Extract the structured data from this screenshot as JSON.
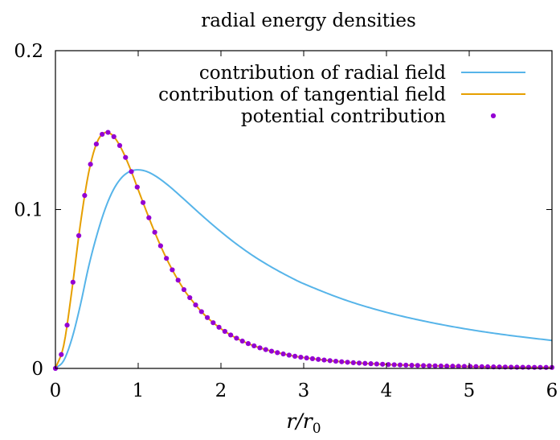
{
  "chart_data": {
    "type": "line",
    "title": "radial energy densities",
    "xlabel": "r/r",
    "xlabel_sub": "0",
    "ylabel": "",
    "xlim": [
      0,
      6
    ],
    "ylim": [
      0,
      0.2
    ],
    "x_ticks": [
      {
        "value": 0,
        "label": "0"
      },
      {
        "value": 1,
        "label": "1"
      },
      {
        "value": 2,
        "label": "2"
      },
      {
        "value": 3,
        "label": "3"
      },
      {
        "value": 4,
        "label": "4"
      },
      {
        "value": 5,
        "label": "5"
      },
      {
        "value": 6,
        "label": "6"
      }
    ],
    "y_ticks": [
      {
        "value": 0,
        "label": "0"
      },
      {
        "value": 0.1,
        "label": "0.1"
      },
      {
        "value": 0.2,
        "label": "0.2"
      }
    ],
    "legend_position": "top-right",
    "grid": false,
    "series": [
      {
        "name": "contribution of radial field",
        "style": "line",
        "color": "#56b4e9",
        "x": [
          0,
          0.1,
          0.2,
          0.3,
          0.4,
          0.5,
          0.6,
          0.7,
          0.8,
          0.9,
          1.0,
          1.1,
          1.2,
          1.3,
          1.4,
          1.5,
          1.6,
          1.8,
          2.0,
          2.2,
          2.4,
          2.6,
          2.8,
          3.0,
          3.5,
          4.0,
          4.5,
          5.0,
          5.5,
          6.0
        ],
        "y": [
          0,
          0.0049,
          0.0189,
          0.0396,
          0.0638,
          0.0838,
          0.1003,
          0.1124,
          0.1201,
          0.124,
          0.125,
          0.124,
          0.1214,
          0.1178,
          0.1136,
          0.109,
          0.1043,
          0.0949,
          0.086,
          0.0778,
          0.0705,
          0.0641,
          0.0584,
          0.0533,
          0.0431,
          0.0353,
          0.0293,
          0.0245,
          0.0207,
          0.0176
        ]
      },
      {
        "name": "contribution of tangential field",
        "style": "line",
        "color": "#e69f00",
        "x": [
          0,
          0.1,
          0.2,
          0.3,
          0.4,
          0.5,
          0.6,
          0.7,
          0.8,
          0.9,
          1.0,
          1.1,
          1.2,
          1.3,
          1.4,
          1.5,
          1.6,
          1.8,
          2.0,
          2.2,
          2.4,
          2.6,
          2.8,
          3.0,
          3.5,
          4.0,
          4.5,
          5.0,
          5.5,
          6.0
        ],
        "y": [
          0,
          0.0145,
          0.0497,
          0.0903,
          0.1228,
          0.142,
          0.1485,
          0.1462,
          0.138,
          0.1262,
          0.1125,
          0.0988,
          0.0857,
          0.0738,
          0.0632,
          0.054,
          0.0461,
          0.0338,
          0.025,
          0.0187,
          0.0142,
          0.011,
          0.0086,
          0.0068,
          0.004,
          0.0025,
          0.0017,
          0.0012,
          0.0008,
          0.0006
        ]
      },
      {
        "name": "potential contribution",
        "style": "points",
        "color": "#9400d3",
        "x": [
          0,
          0.1,
          0.2,
          0.3,
          0.4,
          0.5,
          0.6,
          0.7,
          0.8,
          0.9,
          1.0,
          1.1,
          1.2,
          1.3,
          1.4,
          1.5,
          1.6,
          1.8,
          2.0,
          2.2,
          2.4,
          2.6,
          2.8,
          3.0,
          3.5,
          4.0,
          4.5,
          5.0,
          5.5,
          6.0
        ],
        "y": [
          0,
          0.0145,
          0.0497,
          0.0903,
          0.1228,
          0.142,
          0.1485,
          0.1462,
          0.138,
          0.1262,
          0.1125,
          0.0988,
          0.0857,
          0.0738,
          0.0632,
          0.054,
          0.0461,
          0.0338,
          0.025,
          0.0187,
          0.0142,
          0.011,
          0.0086,
          0.0068,
          0.004,
          0.0025,
          0.0017,
          0.0012,
          0.0008,
          0.0006
        ]
      }
    ]
  }
}
